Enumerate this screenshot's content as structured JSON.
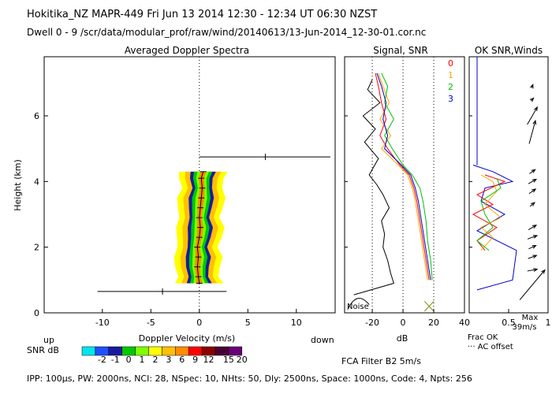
{
  "header": {
    "title": "Hokitika_NZ   MAPR-449   Fri Jun 13 2014 12:30 - 12:34 UT 06:30 NZST",
    "dwell": "Dwell   0 - 9   /scr/data/modular_prof/raw/wind/20140613/13-Jun-2014_12-30-01.cor.nc"
  },
  "footer": {
    "params": "IPP: 100μs,  PW: 2000ns,  NCI: 28,  NSpec: 10, NHts: 50,  Dly: 2500ns,  Space: 1000ns,  Code: 4,  Npts: 256"
  },
  "colors": {
    "scale": [
      "#00e5ee",
      "#1e50ff",
      "#1a1aa0",
      "#00c800",
      "#7fff00",
      "#ffff00",
      "#ffc000",
      "#ff8c00",
      "#ff0000",
      "#8b0000",
      "#4b0033",
      "#6a0078"
    ],
    "series": [
      "#ff0000",
      "#ffa500",
      "#00c000",
      "#0000c8"
    ]
  },
  "legend": {
    "up": "up",
    "down": "down",
    "snr_label": "SNR dB",
    "ticks": [
      "-2",
      "-1",
      "0",
      "1",
      "2",
      "3",
      "6",
      "9",
      "12",
      "15",
      "20"
    ],
    "fca": "FCA Filter B2   5m/s"
  },
  "chart_data": [
    {
      "type": "heatmap",
      "title": "Averaged Doppler Spectra",
      "xlabel": "Doppler Velocity (m/s)",
      "ylabel": "Height (km)",
      "xlim": [
        -16,
        14
      ],
      "ylim": [
        0,
        7.8
      ],
      "xticks": [
        "-10",
        "-5",
        "0",
        "5",
        "10"
      ],
      "yticks": [
        "0",
        "2",
        "4",
        "6"
      ],
      "peak_velocity_profile": [
        {
          "h": 0.9,
          "v": 0.0
        },
        {
          "h": 1.1,
          "v": -0.1
        },
        {
          "h": 1.4,
          "v": -0.2
        },
        {
          "h": 1.7,
          "v": -0.1
        },
        {
          "h": 2.0,
          "v": -0.2
        },
        {
          "h": 2.3,
          "v": 0.0
        },
        {
          "h": 2.6,
          "v": 0.1
        },
        {
          "h": 2.9,
          "v": 0.0
        },
        {
          "h": 3.2,
          "v": 0.1
        },
        {
          "h": 3.5,
          "v": 0.2
        },
        {
          "h": 3.8,
          "v": 0.3
        },
        {
          "h": 4.1,
          "v": 0.2
        },
        {
          "h": 4.3,
          "v": 0.4
        }
      ],
      "error_bars": [
        {
          "h": 0.65,
          "center": -3.8,
          "low": -10.5,
          "high": 2.8
        },
        {
          "h": 4.75,
          "center": 6.8,
          "low": 0.0,
          "high": 13.5
        }
      ]
    },
    {
      "type": "line",
      "title": "Signal, SNR",
      "xlabel": "dB",
      "xlim": [
        -38,
        40
      ],
      "ylim": [
        0,
        7.8
      ],
      "xticks": [
        "-20",
        "0",
        "20",
        "40"
      ],
      "noise_label": "Noise",
      "signal": [
        [
          0.55,
          -32
        ],
        [
          0.9,
          -6
        ],
        [
          1.2,
          -8
        ],
        [
          1.6,
          -10
        ],
        [
          2.0,
          -13
        ],
        [
          2.4,
          -12
        ],
        [
          2.8,
          -14
        ],
        [
          3.2,
          -9
        ],
        [
          3.6,
          -13
        ],
        [
          3.9,
          -17
        ],
        [
          4.2,
          -22
        ],
        [
          4.7,
          -16
        ],
        [
          5.2,
          -25
        ],
        [
          5.6,
          -18
        ],
        [
          6.0,
          -26
        ],
        [
          6.4,
          -15
        ],
        [
          6.8,
          -23
        ],
        [
          7.1,
          -20
        ]
      ],
      "snr": [
        {
          "name": "0",
          "values": [
            [
              1.0,
              17
            ],
            [
              1.6,
              15
            ],
            [
              2.2,
              13
            ],
            [
              2.8,
              11
            ],
            [
              3.4,
              9
            ],
            [
              3.8,
              7
            ],
            [
              4.2,
              4
            ],
            [
              4.5,
              -2
            ],
            [
              5.0,
              -10
            ],
            [
              5.4,
              -15
            ],
            [
              5.9,
              -11
            ],
            [
              6.4,
              -14
            ],
            [
              6.9,
              -16
            ],
            [
              7.3,
              -18
            ]
          ]
        },
        {
          "name": "1",
          "values": [
            [
              1.0,
              16
            ],
            [
              1.6,
              14
            ],
            [
              2.2,
              12
            ],
            [
              2.8,
              10
            ],
            [
              3.4,
              8
            ],
            [
              3.8,
              6
            ],
            [
              4.2,
              3
            ],
            [
              4.5,
              -3
            ],
            [
              5.0,
              -14
            ],
            [
              5.4,
              -8
            ],
            [
              5.9,
              -15
            ],
            [
              6.4,
              -9
            ],
            [
              6.9,
              -13
            ],
            [
              7.3,
              -16
            ]
          ]
        },
        {
          "name": "2",
          "values": [
            [
              1.0,
              19
            ],
            [
              1.6,
              18
            ],
            [
              2.2,
              16
            ],
            [
              2.8,
              15
            ],
            [
              3.4,
              13
            ],
            [
              3.8,
              11
            ],
            [
              4.2,
              6
            ],
            [
              4.5,
              0
            ],
            [
              5.0,
              -7
            ],
            [
              5.4,
              -12
            ],
            [
              5.9,
              -6
            ],
            [
              6.4,
              -12
            ],
            [
              6.9,
              -10
            ],
            [
              7.3,
              -14
            ]
          ]
        },
        {
          "name": "3",
          "values": [
            [
              1.0,
              18
            ],
            [
              1.6,
              16
            ],
            [
              2.2,
              14
            ],
            [
              2.8,
              12
            ],
            [
              3.4,
              10
            ],
            [
              3.8,
              8
            ],
            [
              4.2,
              5
            ],
            [
              4.5,
              -1
            ],
            [
              5.0,
              -12
            ],
            [
              5.4,
              -10
            ],
            [
              5.9,
              -13
            ],
            [
              6.4,
              -11
            ],
            [
              6.9,
              -14
            ],
            [
              7.3,
              -17
            ]
          ]
        }
      ]
    },
    {
      "type": "line",
      "title": "OK SNR,Winds",
      "xlim": [
        0,
        1
      ],
      "ylim": [
        0,
        7.8
      ],
      "xticks": [
        "0.5",
        "1"
      ],
      "legend": [
        "0",
        "1",
        "2",
        "3"
      ],
      "max_label": "Max",
      "max_value": "39m/s",
      "frac_label": "Frac OK",
      "ac_label": "··· AC offset",
      "frac_ok": {
        "h": [
          0.7,
          1.0,
          1.9,
          2.5,
          3.0,
          3.4,
          3.8,
          4.0,
          4.3,
          4.5
        ],
        "v": [
          0.1,
          0.55,
          0.6,
          0.1,
          0.45,
          0.15,
          0.2,
          0.55,
          0.3,
          0.05
        ]
      },
      "frac_ok_series": [
        {
          "name": "0",
          "h": [
            1.9,
            2.2,
            2.6,
            3.0,
            3.3,
            3.6,
            4.0,
            4.2
          ],
          "v": [
            0.2,
            0.1,
            0.35,
            0.05,
            0.3,
            0.1,
            0.45,
            0.2
          ]
        },
        {
          "name": "1",
          "h": [
            1.9,
            2.3,
            2.6,
            2.9,
            3.3,
            3.7,
            4.0,
            4.2
          ],
          "v": [
            0.15,
            0.3,
            0.15,
            0.4,
            0.2,
            0.35,
            0.3,
            0.15
          ]
        },
        {
          "name": "2",
          "h": [
            1.9,
            2.2,
            2.6,
            3.0,
            3.4,
            3.8,
            4.1
          ],
          "v": [
            0.25,
            0.1,
            0.3,
            0.2,
            0.15,
            0.4,
            0.35
          ]
        }
      ],
      "winds": [
        {
          "h": 0.85,
          "dir": 220,
          "speed": 39
        },
        {
          "h": 1.3,
          "dir": 260,
          "speed": 10
        },
        {
          "h": 1.7,
          "dir": 250,
          "speed": 9
        },
        {
          "h": 2.0,
          "dir": 245,
          "speed": 8
        },
        {
          "h": 2.3,
          "dir": 250,
          "speed": 10
        },
        {
          "h": 2.6,
          "dir": 240,
          "speed": 9
        },
        {
          "h": 3.3,
          "dir": 230,
          "speed": 6
        },
        {
          "h": 3.7,
          "dir": 235,
          "speed": 8
        },
        {
          "h": 4.0,
          "dir": 240,
          "speed": 9
        },
        {
          "h": 4.3,
          "dir": 235,
          "speed": 7
        },
        {
          "h": 5.5,
          "dir": 195,
          "speed": 24
        },
        {
          "h": 6.0,
          "dir": 210,
          "speed": 20
        },
        {
          "h": 6.5,
          "dir": 225,
          "speed": 3
        },
        {
          "h": 6.9,
          "dir": 200,
          "speed": 2
        }
      ]
    }
  ]
}
